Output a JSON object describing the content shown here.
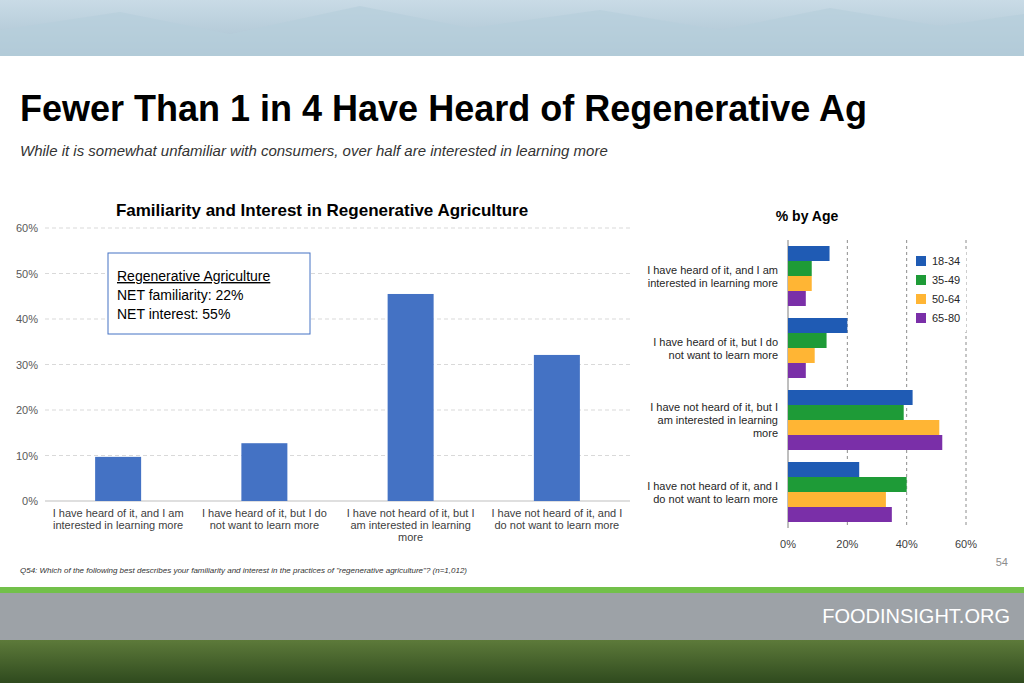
{
  "slide": {
    "title": "Fewer Than 1 in 4 Have Heard of Regenerative Ag",
    "subtitle": "While it is somewhat unfamiliar with consumers, over half are interested in learning more",
    "note": "Q54: Which of the following best describes your familiarity and interest in the practices of \"regenerative agriculture\"? (n=1,012)",
    "page": "54",
    "footer": "FOODINSIGHT.ORG"
  },
  "chart_data": [
    {
      "type": "bar",
      "title": "Familiarity and Interest in Regenerative Agriculture",
      "categories": [
        "I have heard of it, and I am interested in learning more",
        "I have heard of it, but I do not want to learn more",
        "I have not heard of it, but I am interested in learning more",
        "I have not heard of it, and I do not want to learn more"
      ],
      "values": [
        9.7,
        12.7,
        45.5,
        32.1
      ],
      "color": "#4472c4",
      "ylim": [
        0,
        60
      ],
      "yticks": [
        {
          "value": 0,
          "label": "0%"
        },
        {
          "value": 10,
          "label": "10%"
        },
        {
          "value": 20,
          "label": "20%"
        },
        {
          "value": 30,
          "label": "30%"
        },
        {
          "value": 40,
          "label": "40%"
        },
        {
          "value": 50,
          "label": "50%"
        },
        {
          "value": 60,
          "label": "60%"
        }
      ],
      "grid": true,
      "annotations": [
        "Regenerative Agriculture",
        "NET familiarity: 22%",
        "NET interest: 55%"
      ]
    },
    {
      "type": "bar",
      "orientation": "horizontal",
      "title": "% by Age",
      "categories": [
        "I have heard of it, and I am interested in learning more",
        "I have heard of it, but I do not want to learn more",
        "I have not heard of it, but I am interested in learning more",
        "I have not heard of it, and I do not want to learn more"
      ],
      "series": [
        {
          "name": "18-34",
          "color": "#1f5bb4",
          "values": [
            14,
            20,
            42,
            24
          ]
        },
        {
          "name": "35-49",
          "color": "#1e9b37",
          "values": [
            8,
            13,
            39,
            40
          ]
        },
        {
          "name": "50-64",
          "color": "#ffb534",
          "values": [
            8,
            9,
            51,
            33
          ]
        },
        {
          "name": "65-80",
          "color": "#7a2fa8",
          "values": [
            6,
            6,
            52,
            35
          ]
        }
      ],
      "xlim": [
        0,
        60
      ],
      "xticks": [
        {
          "value": 0,
          "label": "0%"
        },
        {
          "value": 20,
          "label": "20%"
        },
        {
          "value": 40,
          "label": "40%"
        },
        {
          "value": 60,
          "label": "60%"
        }
      ],
      "grid": true,
      "legend": "upper right"
    }
  ]
}
